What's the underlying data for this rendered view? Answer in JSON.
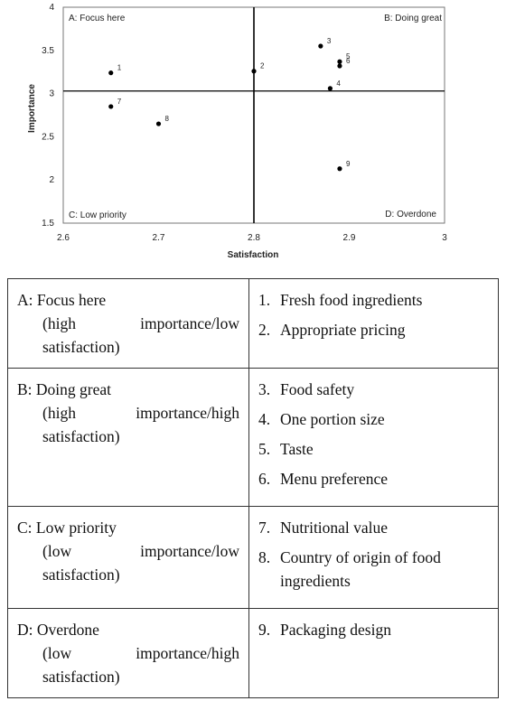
{
  "chart_data": {
    "type": "scatter",
    "title": "",
    "xlabel": "Satisfaction",
    "ylabel": "Importance",
    "xlim": [
      2.6,
      3.0
    ],
    "ylim": [
      1.5,
      4.0
    ],
    "x_ticks": [
      "2.6",
      "2.7",
      "2.8",
      "2.9",
      "3"
    ],
    "y_ticks": [
      "1.5",
      "2",
      "2.5",
      "3",
      "3.5",
      "4"
    ],
    "dividers": {
      "x": 2.8,
      "y": 3.03
    },
    "quadrant_labels": [
      "A: Focus here",
      "B: Doing great",
      "C: Low priority",
      "D: Overdone"
    ],
    "points": [
      {
        "label": "1",
        "x": 2.65,
        "y": 3.24
      },
      {
        "label": "2",
        "x": 2.8,
        "y": 3.26
      },
      {
        "label": "3",
        "x": 2.87,
        "y": 3.55
      },
      {
        "label": "4",
        "x": 2.88,
        "y": 3.06
      },
      {
        "label": "5",
        "x": 2.89,
        "y": 3.37
      },
      {
        "label": "6",
        "x": 2.89,
        "y": 3.32
      },
      {
        "label": "7",
        "x": 2.65,
        "y": 2.85
      },
      {
        "label": "8",
        "x": 2.7,
        "y": 2.65
      },
      {
        "label": "9",
        "x": 2.89,
        "y": 2.13
      }
    ]
  },
  "legend_table": {
    "rows": [
      {
        "quadrant": "A: Focus here",
        "description": "(high importance/low satisfaction)",
        "items": [
          {
            "num": "1.",
            "text": "Fresh food ingredients"
          },
          {
            "num": "2.",
            "text": "Appropriate pricing"
          }
        ]
      },
      {
        "quadrant": "B: Doing great",
        "description": "(high importance/high satisfaction)",
        "items": [
          {
            "num": "3.",
            "text": "Food safety"
          },
          {
            "num": "4.",
            "text": "One portion size"
          },
          {
            "num": "5.",
            "text": "Taste"
          },
          {
            "num": "6.",
            "text": "Menu preference"
          }
        ]
      },
      {
        "quadrant": "C: Low priority",
        "description": "(low importance/low satisfaction)",
        "items": [
          {
            "num": "7.",
            "text": "Nutritional value"
          },
          {
            "num": "8.",
            "text": "Country of origin of food ingredients"
          }
        ]
      },
      {
        "quadrant": "D: Overdone",
        "description": "(low importance/high satisfaction)",
        "items": [
          {
            "num": "9.",
            "text": "Packaging design"
          }
        ]
      }
    ]
  }
}
